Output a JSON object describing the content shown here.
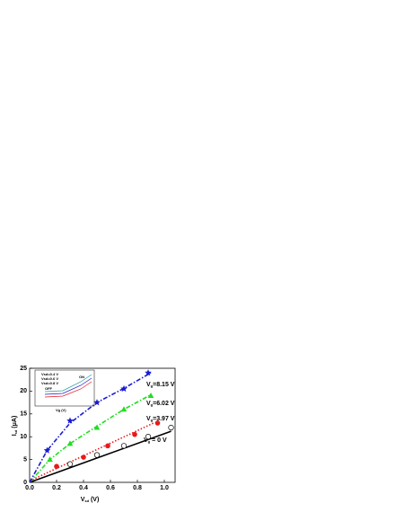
{
  "chart_data": {
    "type": "scatter",
    "x_label": {
      "main": "V",
      "sub": "sd",
      "unit": " (V)"
    },
    "y_label": {
      "main": "I",
      "sub": "sd",
      "unit": " (μA)"
    },
    "xlim": [
      0,
      1.08
    ],
    "ylim": [
      0,
      25
    ],
    "xticks": [
      {
        "value": 0,
        "label": "0.0"
      },
      0.2,
      0.4,
      0.6,
      0.8,
      {
        "value": 1,
        "label": "1.0"
      }
    ],
    "yticks": [
      0,
      5,
      10,
      15,
      20,
      25
    ],
    "series": [
      {
        "name": "Vg = 0 V",
        "color": "#000000",
        "marker": "open-circle",
        "x": [
          0.3,
          0.5,
          0.7,
          0.88,
          1.05
        ],
        "values": [
          4,
          6,
          8,
          10,
          12
        ]
      },
      {
        "name": "Vg=3.97 V",
        "color": "#e8191b",
        "marker": "circle",
        "x": [
          0.2,
          0.4,
          0.58,
          0.78,
          0.95
        ],
        "values": [
          3.5,
          5.5,
          8,
          10.5,
          13
        ]
      },
      {
        "name": "Vg=6.02 V",
        "color": "#22dd22",
        "marker": "triangle",
        "x": [
          0.15,
          0.3,
          0.5,
          0.7,
          0.9
        ],
        "values": [
          5,
          8.5,
          12,
          16,
          19
        ]
      },
      {
        "name": "Vg=8.15 V",
        "color": "#1a1ad6",
        "marker": "star",
        "x": [
          0.13,
          0.3,
          0.5,
          0.7,
          0.88
        ],
        "values": [
          7,
          13.5,
          17.5,
          20.5,
          24
        ]
      }
    ],
    "fits": [
      {
        "color": "#000000",
        "dash": "none",
        "x": [
          0,
          1.05
        ],
        "values": [
          0,
          11.2
        ]
      },
      {
        "color": "#e8191b",
        "dash": "1.5 2",
        "x": [
          0,
          0.92
        ],
        "values": [
          0.3,
          13
        ]
      },
      {
        "color": "#22dd22",
        "dash": "5 2 1.5 2",
        "x": [
          0,
          0.15,
          0.3,
          0.5,
          0.7,
          0.9
        ],
        "values": [
          0,
          5,
          8.5,
          12.3,
          16,
          19.2
        ]
      },
      {
        "color": "#1a1ad6",
        "dash": "5 2 1.5 2",
        "x": [
          0,
          0.13,
          0.3,
          0.5,
          0.7,
          0.9
        ],
        "values": [
          0,
          7,
          13,
          17.5,
          20.6,
          24
        ]
      }
    ],
    "annotations": [
      {
        "main": "V",
        "sub": "g",
        "rest": "=8.15 V"
      },
      {
        "main": "V",
        "sub": "g",
        "rest": "=6.02 V"
      },
      {
        "main": "V",
        "sub": "g",
        "rest": "=3.97 V"
      },
      {
        "main": "V",
        "sub": "g",
        "rest": " = 0 V"
      }
    ],
    "inset": {
      "legend": [
        "Vsd=0.4 V",
        "Vsd=0.6 V",
        "Vsd=0.8 V"
      ],
      "off": "OFF",
      "on": "ON",
      "x_label": "Vg (V)"
    }
  }
}
